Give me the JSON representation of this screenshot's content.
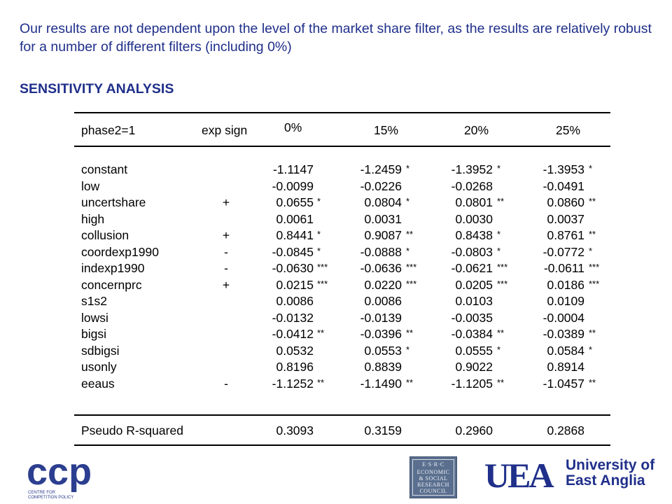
{
  "intro_text": "Our results are not dependent upon the level of the market share filter, as the results are relatively robust for a number of different filters (including 0%)",
  "heading": "SENSITIVITY ANALYSIS",
  "table": {
    "header": {
      "label": "phase2=1",
      "exp_sign": "exp sign",
      "filters": [
        "0%",
        "15%",
        "20%",
        "25%"
      ]
    },
    "rows": [
      {
        "var": "constant",
        "sign": "",
        "v": [
          "-1.1147",
          "-1.2459",
          "-1.3952",
          "-1.3953"
        ],
        "s": [
          "",
          "*",
          "*",
          "*"
        ]
      },
      {
        "var": "low",
        "sign": "",
        "v": [
          "-0.0099",
          "-0.0226",
          "-0.0268",
          "-0.0491"
        ],
        "s": [
          "",
          "",
          "",
          ""
        ]
      },
      {
        "var": "uncertshare",
        "sign": "+",
        "v": [
          "0.0655",
          "0.0804",
          "0.0801",
          "0.0860"
        ],
        "s": [
          "*",
          "*",
          "**",
          "**"
        ]
      },
      {
        "var": "high",
        "sign": "",
        "v": [
          "0.0061",
          "0.0031",
          "0.0030",
          "0.0037"
        ],
        "s": [
          "",
          "",
          "",
          ""
        ]
      },
      {
        "var": "collusion",
        "sign": "+",
        "v": [
          "0.8441",
          "0.9087",
          "0.8438",
          "0.8761"
        ],
        "s": [
          "*",
          "**",
          "*",
          "**"
        ]
      },
      {
        "var": "coordexp1990",
        "sign": "-",
        "v": [
          "-0.0845",
          "-0.0888",
          "-0.0803",
          "-0.0772"
        ],
        "s": [
          "*",
          "*",
          "*",
          "*"
        ]
      },
      {
        "var": "indexp1990",
        "sign": "-",
        "v": [
          "-0.0630",
          "-0.0636",
          "-0.0621",
          "-0.0611"
        ],
        "s": [
          "***",
          "***",
          "***",
          "***"
        ]
      },
      {
        "var": "concernprc",
        "sign": "+",
        "v": [
          "0.0215",
          "0.0220",
          "0.0205",
          "0.0186"
        ],
        "s": [
          "***",
          "***",
          "***",
          "***"
        ]
      },
      {
        "var": "s1s2",
        "sign": "",
        "v": [
          "0.0086",
          "0.0086",
          "0.0103",
          "0.0109"
        ],
        "s": [
          "",
          "",
          "",
          ""
        ]
      },
      {
        "var": "lowsi",
        "sign": "",
        "v": [
          "-0.0132",
          "-0.0139",
          "-0.0035",
          "-0.0004"
        ],
        "s": [
          "",
          "",
          "",
          ""
        ]
      },
      {
        "var": "bigsi",
        "sign": "",
        "v": [
          "-0.0412",
          "-0.0396",
          "-0.0384",
          "-0.0389"
        ],
        "s": [
          "**",
          "**",
          "**",
          "**"
        ]
      },
      {
        "var": "sdbigsi",
        "sign": "",
        "v": [
          "0.0532",
          "0.0553",
          "0.0555",
          "0.0584"
        ],
        "s": [
          "",
          "*",
          "*",
          "*"
        ]
      },
      {
        "var": "usonly",
        "sign": "",
        "v": [
          "0.8196",
          "0.8839",
          "0.9022",
          "0.8914"
        ],
        "s": [
          "",
          "",
          "",
          ""
        ]
      },
      {
        "var": "eeaus",
        "sign": "-",
        "v": [
          "-1.1252",
          "-1.1490",
          "-1.1205",
          "-1.0457"
        ],
        "s": [
          "**",
          "**",
          "**",
          "**"
        ]
      }
    ],
    "footer": {
      "label": "Pseudo R-squared",
      "v": [
        "0.3093",
        "0.3159",
        "0.2960",
        "0.2868"
      ]
    }
  },
  "logos": {
    "ccp": {
      "mark": "ccp",
      "caption_line1": "CENTRE FOR",
      "caption_line2": "COMPETITION POLICY",
      "color": "#2c3e8f"
    },
    "esrc": {
      "lines": [
        "E·S·R·C",
        "ECONOMIC",
        "& SOCIAL",
        "RESEARCH",
        "COUNCIL"
      ],
      "color": "#5a6f8e"
    },
    "uea": {
      "mark": "UEA",
      "line1": "University of",
      "line2": "East Anglia",
      "color": "#1f2f8a"
    }
  }
}
